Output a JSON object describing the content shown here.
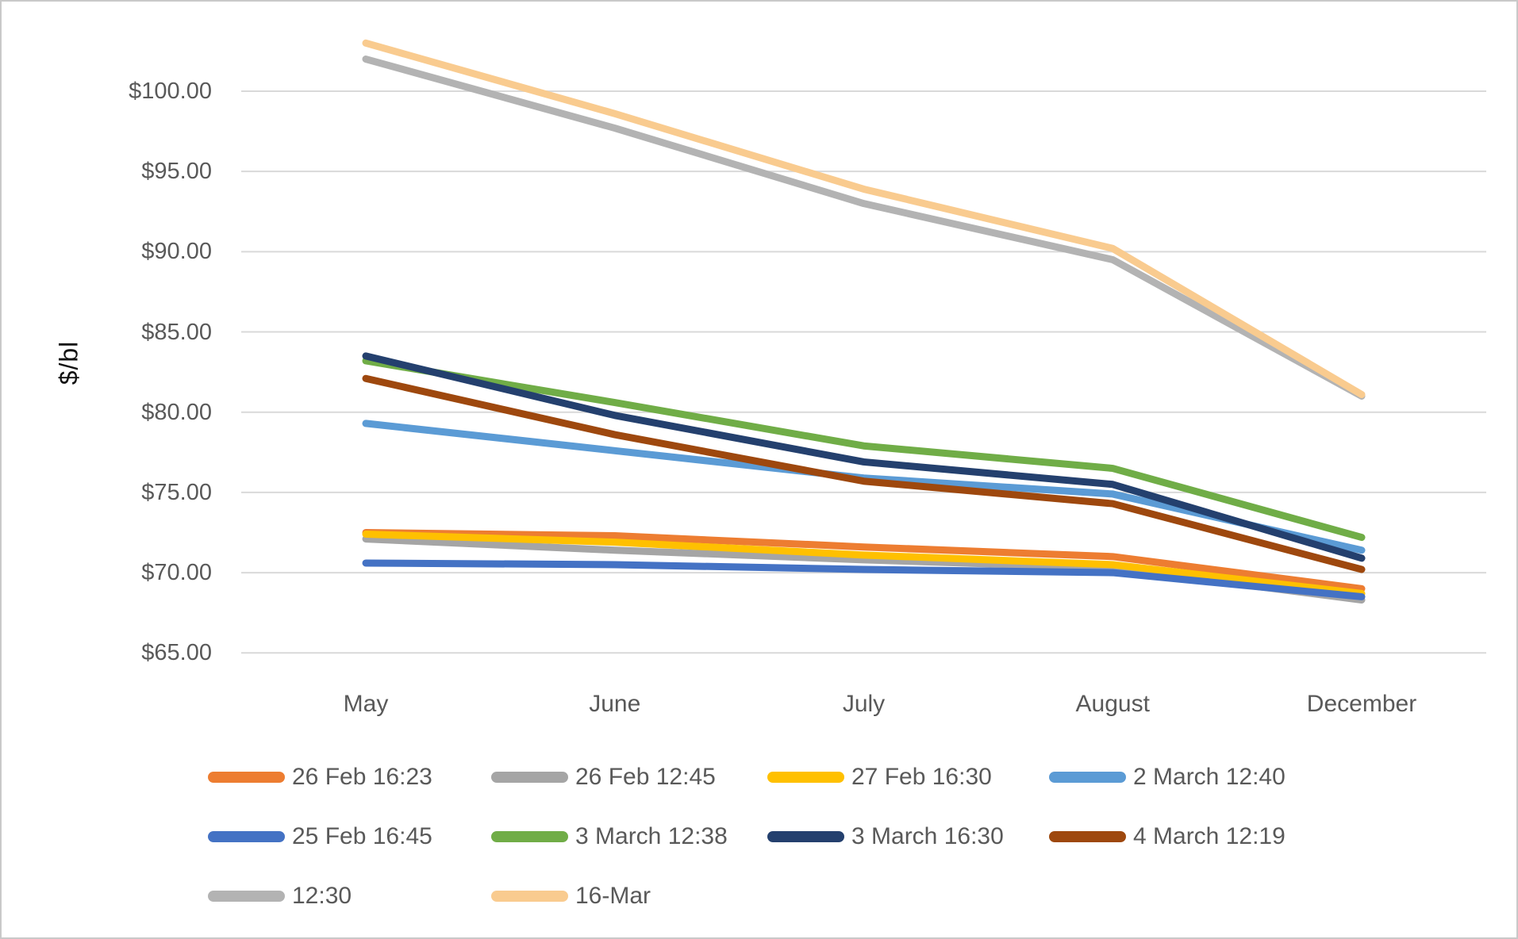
{
  "chart_data": {
    "type": "line",
    "title": "",
    "ylabel": "$/bl",
    "xlabel": "",
    "grid": true,
    "legend_position": "bottom",
    "categories": [
      "May",
      "June",
      "July",
      "August",
      "December"
    ],
    "ylim": [
      65,
      100
    ],
    "ytick_values": [
      100,
      95,
      90,
      85,
      80,
      75,
      70,
      65
    ],
    "ytick_labels": [
      "$100.00",
      "$95.00",
      "$90.00",
      "$85.00",
      "$80.00",
      "$75.00",
      "$70.00",
      "$65.00"
    ],
    "series": [
      {
        "name": "26 Feb 16:23",
        "color": "#ED7D31",
        "values": [
          72.5,
          72.3,
          71.6,
          71.0,
          69.0
        ]
      },
      {
        "name": "26 Feb 12:45",
        "color": "#A5A5A5",
        "values": [
          72.1,
          71.4,
          70.8,
          70.3,
          68.3
        ]
      },
      {
        "name": "27 Feb 16:30",
        "color": "#FFC000",
        "values": [
          72.4,
          71.9,
          71.1,
          70.5,
          68.7
        ]
      },
      {
        "name": "2 March 12:40",
        "color": "#5B9BD5",
        "values": [
          79.3,
          77.6,
          75.9,
          74.9,
          71.4
        ]
      },
      {
        "name": "25 Feb 16:45",
        "color": "#4472C4",
        "values": [
          70.6,
          70.5,
          70.2,
          70.0,
          68.5
        ]
      },
      {
        "name": "3 March 12:38",
        "color": "#70AD47",
        "values": [
          83.2,
          80.6,
          77.9,
          76.5,
          72.2
        ]
      },
      {
        "name": "3 March 16:30",
        "color": "#24406E",
        "values": [
          83.5,
          79.8,
          76.9,
          75.5,
          70.9
        ]
      },
      {
        "name": "4 March 12:19",
        "color": "#9E480E",
        "values": [
          82.1,
          78.6,
          75.7,
          74.3,
          70.2
        ]
      },
      {
        "name": "12:30",
        "color": "#B3B3B3",
        "values": [
          102.0,
          97.7,
          93.0,
          89.5,
          81.0
        ]
      },
      {
        "name": "16-Mar",
        "color": "#F9CB8F",
        "values": [
          103.0,
          98.6,
          93.9,
          90.2,
          81.1
        ]
      }
    ]
  }
}
